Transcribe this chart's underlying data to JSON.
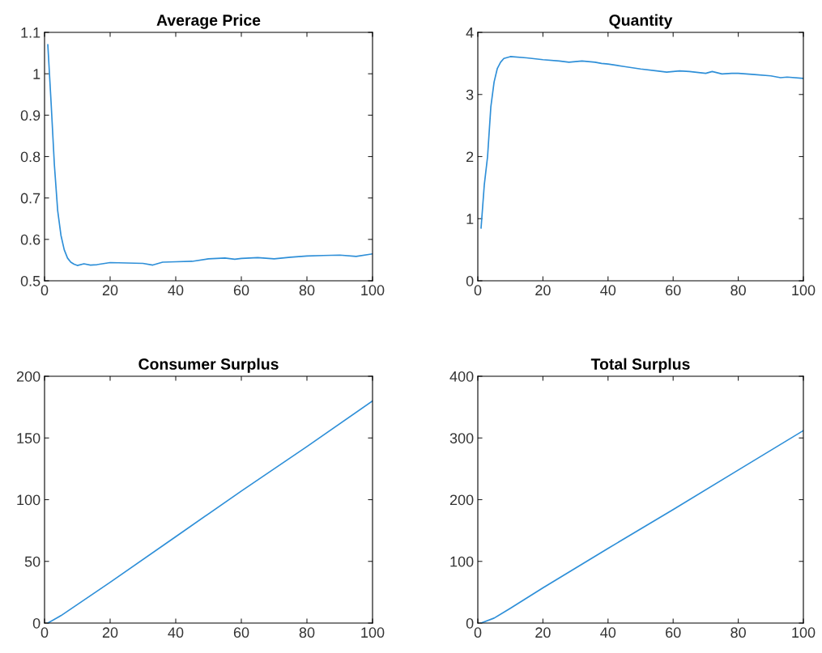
{
  "chart_data": [
    {
      "type": "line",
      "title": "Average Price",
      "xlim": [
        0,
        100
      ],
      "xticks": [
        0,
        20,
        40,
        60,
        80,
        100
      ],
      "ylim": [
        0.5,
        1.1
      ],
      "yticks": [
        0.5,
        0.6,
        0.7,
        0.8,
        0.9,
        1,
        1.1
      ],
      "grid": false,
      "series": [
        {
          "color": "#2e8fd8",
          "x": [
            1,
            2,
            3,
            4,
            5,
            6,
            7,
            8,
            9,
            10,
            12,
            14,
            16,
            20,
            25,
            30,
            33,
            36,
            40,
            45,
            50,
            55,
            58,
            60,
            65,
            70,
            75,
            80,
            85,
            90,
            95,
            100
          ],
          "values": [
            1.07,
            0.93,
            0.78,
            0.67,
            0.61,
            0.575,
            0.555,
            0.545,
            0.54,
            0.537,
            0.541,
            0.538,
            0.539,
            0.544,
            0.543,
            0.542,
            0.538,
            0.545,
            0.546,
            0.547,
            0.553,
            0.555,
            0.552,
            0.554,
            0.556,
            0.553,
            0.557,
            0.56,
            0.561,
            0.562,
            0.559,
            0.565
          ]
        }
      ]
    },
    {
      "type": "line",
      "title": "Quantity",
      "xlim": [
        0,
        100
      ],
      "xticks": [
        0,
        20,
        40,
        60,
        80,
        100
      ],
      "ylim": [
        0,
        4
      ],
      "yticks": [
        0,
        1,
        2,
        3,
        4
      ],
      "grid": false,
      "series": [
        {
          "color": "#2e8fd8",
          "x": [
            1,
            2,
            3,
            4,
            5,
            6,
            7,
            8,
            10,
            15,
            20,
            25,
            28,
            32,
            36,
            38,
            40,
            45,
            50,
            55,
            58,
            62,
            65,
            70,
            72,
            75,
            78,
            80,
            85,
            90,
            93,
            95,
            100
          ],
          "values": [
            0.85,
            1.55,
            2.0,
            2.8,
            3.2,
            3.42,
            3.52,
            3.58,
            3.61,
            3.59,
            3.56,
            3.54,
            3.52,
            3.54,
            3.52,
            3.5,
            3.49,
            3.45,
            3.41,
            3.38,
            3.36,
            3.38,
            3.37,
            3.34,
            3.37,
            3.33,
            3.34,
            3.34,
            3.32,
            3.3,
            3.27,
            3.28,
            3.26
          ]
        }
      ]
    },
    {
      "type": "line",
      "title": "Consumer Surplus",
      "xlim": [
        0,
        100
      ],
      "xticks": [
        0,
        20,
        40,
        60,
        80,
        100
      ],
      "ylim": [
        0,
        200
      ],
      "yticks": [
        0,
        50,
        100,
        150,
        200
      ],
      "grid": false,
      "series": [
        {
          "color": "#2e8fd8",
          "x": [
            1,
            5,
            10,
            20,
            40,
            60,
            80,
            100
          ],
          "values": [
            0,
            6,
            15,
            33,
            70,
            107,
            143,
            180
          ]
        }
      ]
    },
    {
      "type": "line",
      "title": "Total Surplus",
      "xlim": [
        0,
        100
      ],
      "xticks": [
        0,
        20,
        40,
        60,
        80,
        100
      ],
      "ylim": [
        0,
        400
      ],
      "yticks": [
        0,
        100,
        200,
        300,
        400
      ],
      "grid": false,
      "series": [
        {
          "color": "#2e8fd8",
          "x": [
            1,
            5,
            10,
            20,
            40,
            60,
            80,
            100
          ],
          "values": [
            0,
            8,
            24,
            57,
            121,
            184,
            248,
            312
          ]
        }
      ]
    }
  ]
}
